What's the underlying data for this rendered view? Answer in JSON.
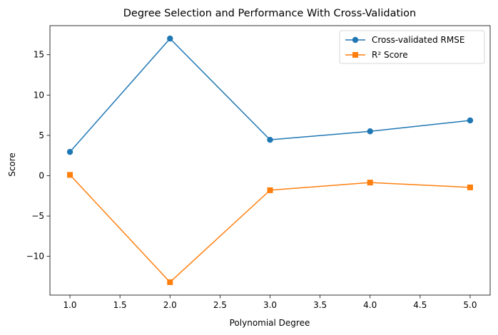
{
  "chart_data": {
    "type": "line",
    "title": "Degree Selection and Performance With Cross-Validation",
    "xlabel": "Polynomial Degree",
    "ylabel": "Score",
    "x": [
      1.0,
      2.0,
      3.0,
      4.0,
      5.0
    ],
    "xlim": [
      0.8,
      5.2
    ],
    "ylim": [
      -14.8,
      18.6
    ],
    "xticks": [
      "1.0",
      "1.5",
      "2.0",
      "2.5",
      "3.0",
      "3.5",
      "4.0",
      "4.5",
      "5.0"
    ],
    "xtick_values": [
      1.0,
      1.5,
      2.0,
      2.5,
      3.0,
      3.5,
      4.0,
      4.5,
      5.0
    ],
    "yticks": [
      "−10",
      "−5",
      "0",
      "5",
      "10",
      "15"
    ],
    "ytick_values": [
      -10,
      -5,
      0,
      5,
      10,
      15
    ],
    "grid": false,
    "legend_position": "top-right",
    "series": [
      {
        "name": "Cross-validated RMSE",
        "values": [
          2.95,
          17.0,
          4.45,
          5.5,
          6.85
        ],
        "color": "#1f77b4",
        "marker": "circle"
      },
      {
        "name": "R² Score",
        "values": [
          0.1,
          -13.2,
          -1.8,
          -0.85,
          -1.45
        ],
        "color": "#ff7f0e",
        "marker": "square"
      }
    ]
  }
}
